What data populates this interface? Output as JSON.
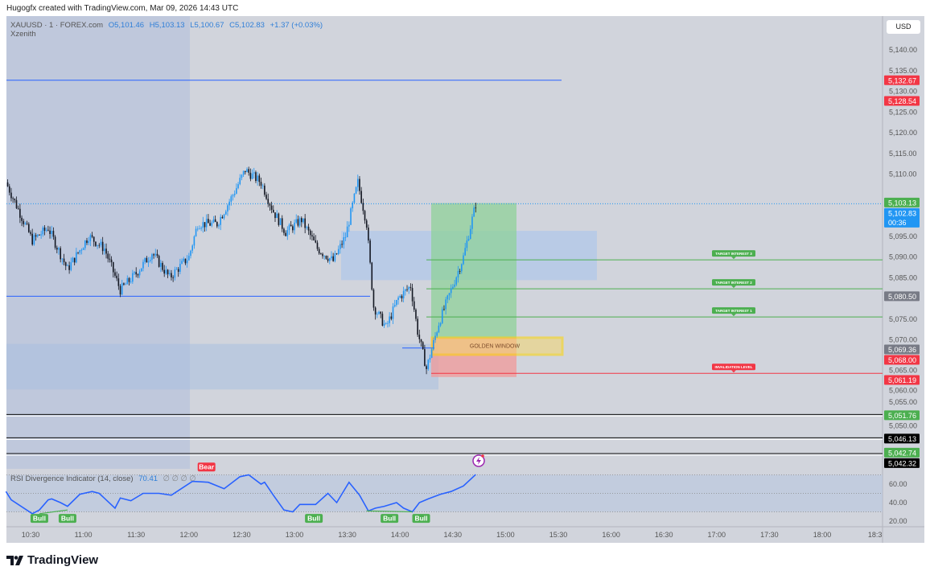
{
  "attribution": "Hugogfx created with TradingView.com, Mar 09, 2026 14:43 UTC",
  "legend": {
    "symbol": "XAUUSD · 1 · FOREX.com",
    "open": "O5,101.46",
    "high": "H5,103.13",
    "low": "L5,100.67",
    "close": "C5,102.83",
    "change": "+1.37 (+0.03%)",
    "indicator_name": "Xzenith"
  },
  "rsi_legend": {
    "title": "RSI Divergence Indicator (14, close)",
    "value": "70.41",
    "extra": "∅ ∅ ∅ ∅"
  },
  "currency": "USD",
  "brand": "TradingView",
  "colors": {
    "bg": "#d1d4dc",
    "up": "#2196f3",
    "down": "#131722",
    "green": "#4caf50",
    "red": "#f23645",
    "blue": "#2962ff"
  },
  "chart_data": {
    "type": "candlestick",
    "title": "XAUUSD · 1 · FOREX.com",
    "ylim": [
      5036,
      5148
    ],
    "y_ticks": [
      "5,140.00",
      "5,135.00",
      "5,130.00",
      "5,125.00",
      "5,120.00",
      "5,115.00",
      "5,110.00",
      "5,095.00",
      "5,090.00",
      "5,085.00",
      "5,075.00",
      "5,070.00",
      "5,065.00",
      "5,060.00",
      "5,055.00",
      "5,050.00"
    ],
    "y_tick_values": [
      5140,
      5135,
      5130,
      5125,
      5120,
      5115,
      5110,
      5095,
      5090,
      5085,
      5075,
      5070,
      5065,
      5060,
      5055,
      5050
    ],
    "x_ticks": [
      "10:30",
      "11:00",
      "11:30",
      "12:00",
      "12:30",
      "13:00",
      "13:30",
      "14:00",
      "14:30",
      "15:00",
      "15:30",
      "16:00",
      "16:30",
      "17:00",
      "17:30",
      "18:00",
      "18:3"
    ],
    "price_path": [
      [
        "10:16",
        5108
      ],
      [
        "10:31",
        5094
      ],
      [
        "10:40",
        5097
      ],
      [
        "10:51",
        5087
      ],
      [
        "11:03",
        5095
      ],
      [
        "11:12",
        5092
      ],
      [
        "11:21",
        5082
      ],
      [
        "11:30",
        5086
      ],
      [
        "11:39",
        5091
      ],
      [
        "11:49",
        5085
      ],
      [
        "12:00",
        5090
      ],
      [
        "12:05",
        5098
      ],
      [
        "12:16",
        5098
      ],
      [
        "12:25",
        5105
      ],
      [
        "12:32",
        5111
      ],
      [
        "12:41",
        5108
      ],
      [
        "12:48",
        5101
      ],
      [
        "12:55",
        5096
      ],
      [
        "13:04",
        5099
      ],
      [
        "13:13",
        5092
      ],
      [
        "13:22",
        5089
      ],
      [
        "13:29",
        5095
      ],
      [
        "13:36",
        5108
      ],
      [
        "13:41",
        5098
      ],
      [
        "13:45",
        5078
      ],
      [
        "13:52",
        5073
      ],
      [
        "13:59",
        5080
      ],
      [
        "14:06",
        5083
      ],
      [
        "14:10",
        5072
      ],
      [
        "14:15",
        5063
      ],
      [
        "14:22",
        5074
      ],
      [
        "14:29",
        5082
      ],
      [
        "14:36",
        5090
      ],
      [
        "14:43",
        5102.83
      ]
    ],
    "price_labels": [
      {
        "value": 5132.67,
        "text": "5,132.67",
        "color": "#f23645"
      },
      {
        "value": 5128.54,
        "text": "5,128.54",
        "color": "#f23645"
      },
      {
        "value": 5103.13,
        "text": "5,103.13",
        "color": "#4caf50"
      },
      {
        "value": 5102.83,
        "text": "5,102.83",
        "sub": "00:36",
        "color": "#2196f3"
      },
      {
        "value": 5080.5,
        "text": "5,080.50",
        "color": "#787b86"
      },
      {
        "value": 5069.36,
        "text": "5,069.36",
        "color": "#787b86"
      },
      {
        "value": 5068.0,
        "text": "5,068.00",
        "color": "#f23645"
      },
      {
        "value": 5061.19,
        "text": "5,061.19",
        "color": "#f23645"
      },
      {
        "value": 5051.76,
        "text": "5,051.76",
        "color": "#4caf50"
      },
      {
        "value": 5046.13,
        "text": "5,046.13",
        "color": "#000000"
      },
      {
        "value": 5042.74,
        "text": "5,042.74",
        "color": "#4caf50"
      },
      {
        "value": 5042.32,
        "text": "5,042.32",
        "color": "#000000"
      }
    ],
    "levels": [
      {
        "name": "TARGET INTEREST 3",
        "value": 5089.3,
        "color": "#4caf50"
      },
      {
        "name": "TARGET INTEREST 2",
        "value": 5082.3,
        "color": "#4caf50"
      },
      {
        "name": "TARGET INTEREST 1",
        "value": 5075.5,
        "color": "#4caf50"
      },
      {
        "name": "INVALIDATION LEVEL",
        "value": 5061.9,
        "color": "#f23645"
      }
    ],
    "zones": {
      "golden_window_label": "GOLDEN WINDOW"
    },
    "rsi": {
      "ylim": [
        14,
        76
      ],
      "y_ticks": [
        "60.00",
        "40.00",
        "20.00"
      ],
      "y_tick_values": [
        60,
        40,
        20
      ],
      "levels": [
        70,
        50,
        30
      ],
      "series": [
        [
          "10:16",
          52
        ],
        [
          "10:19",
          43
        ],
        [
          "10:31",
          28
        ],
        [
          "10:35",
          32
        ],
        [
          "10:40",
          43
        ],
        [
          "10:42",
          44
        ],
        [
          "10:47",
          40
        ],
        [
          "10:51",
          36
        ],
        [
          "10:58",
          49
        ],
        [
          "11:05",
          52
        ],
        [
          "11:09",
          50
        ],
        [
          "11:18",
          34
        ],
        [
          "11:21",
          45
        ],
        [
          "11:27",
          42
        ],
        [
          "11:34",
          50
        ],
        [
          "11:43",
          50
        ],
        [
          "11:50",
          48
        ],
        [
          "12:02",
          63
        ],
        [
          "12:11",
          62
        ],
        [
          "12:20",
          55
        ],
        [
          "12:29",
          68
        ],
        [
          "12:34",
          70
        ],
        [
          "12:41",
          60
        ],
        [
          "12:43",
          62
        ],
        [
          "12:48",
          48
        ],
        [
          "12:54",
          32
        ],
        [
          "12:59",
          30
        ],
        [
          "13:03",
          38
        ],
        [
          "13:12",
          38
        ],
        [
          "13:19",
          50
        ],
        [
          "13:24",
          40
        ],
        [
          "13:31",
          62
        ],
        [
          "13:37",
          48
        ],
        [
          "13:42",
          31
        ],
        [
          "13:46",
          34
        ],
        [
          "13:51",
          36
        ],
        [
          "13:58",
          40
        ],
        [
          "14:02",
          34
        ],
        [
          "14:07",
          30
        ],
        [
          "14:11",
          40
        ],
        [
          "14:16",
          44
        ],
        [
          "14:23",
          49
        ],
        [
          "14:29",
          52
        ],
        [
          "14:36",
          58
        ],
        [
          "14:43",
          70.41
        ]
      ],
      "signals": [
        [
          "10:35",
          "Bull"
        ],
        [
          "10:51",
          "Bull"
        ],
        [
          "12:10",
          "Bear"
        ],
        [
          "13:11",
          "Bull"
        ],
        [
          "13:54",
          "Bull"
        ],
        [
          "14:12",
          "Bull"
        ]
      ]
    }
  }
}
